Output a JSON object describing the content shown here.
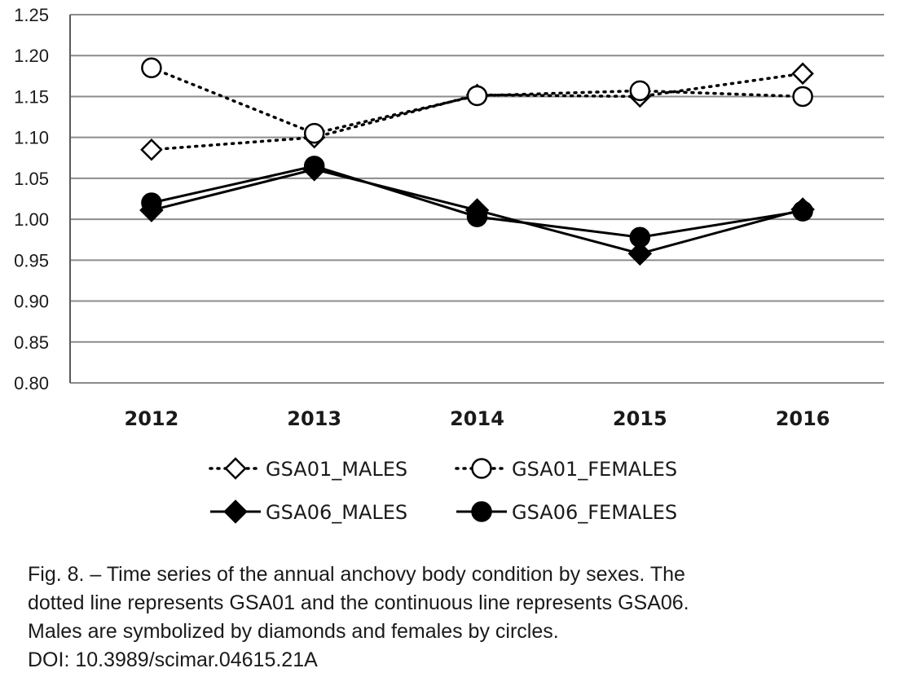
{
  "chart_data": {
    "type": "line",
    "title": "",
    "xlabel": "",
    "ylabel": "",
    "categories": [
      "2012",
      "2013",
      "2014",
      "2015",
      "2016"
    ],
    "ylim": [
      0.8,
      1.25
    ],
    "yticks": [
      "0.80",
      "0.85",
      "0.90",
      "0.95",
      "1.00",
      "1.05",
      "1.10",
      "1.15",
      "1.20",
      "1.25"
    ],
    "grid": true,
    "legend_position": "bottom",
    "series": [
      {
        "name": "GSA01_MALES",
        "values": [
          1.085,
          1.1,
          1.152,
          1.15,
          1.178
        ],
        "line": "dotted",
        "marker": "diamond-open"
      },
      {
        "name": "GSA01_FEMALES",
        "values": [
          1.185,
          1.105,
          1.151,
          1.157,
          1.15
        ],
        "line": "dotted",
        "marker": "circle-open"
      },
      {
        "name": "GSA06_MALES",
        "values": [
          1.011,
          1.061,
          1.011,
          0.958,
          1.012
        ],
        "line": "solid",
        "marker": "diamond-filled"
      },
      {
        "name": "GSA06_FEMALES",
        "values": [
          1.02,
          1.065,
          1.003,
          0.978,
          1.01
        ],
        "line": "solid",
        "marker": "circle-filled"
      }
    ]
  },
  "caption": {
    "lines": [
      "Fig. 8. – Time series of the annual anchovy body condition by sexes. The",
      "dotted line represents GSA01 and the continuous line represents GSA06.",
      "Males are symbolized by diamonds and females by circles.",
      "DOI: 10.3989/scimar.04615.21A"
    ]
  },
  "colors": {
    "line": "#000000",
    "grid": "#8c8c8c",
    "axis": "#595959"
  }
}
